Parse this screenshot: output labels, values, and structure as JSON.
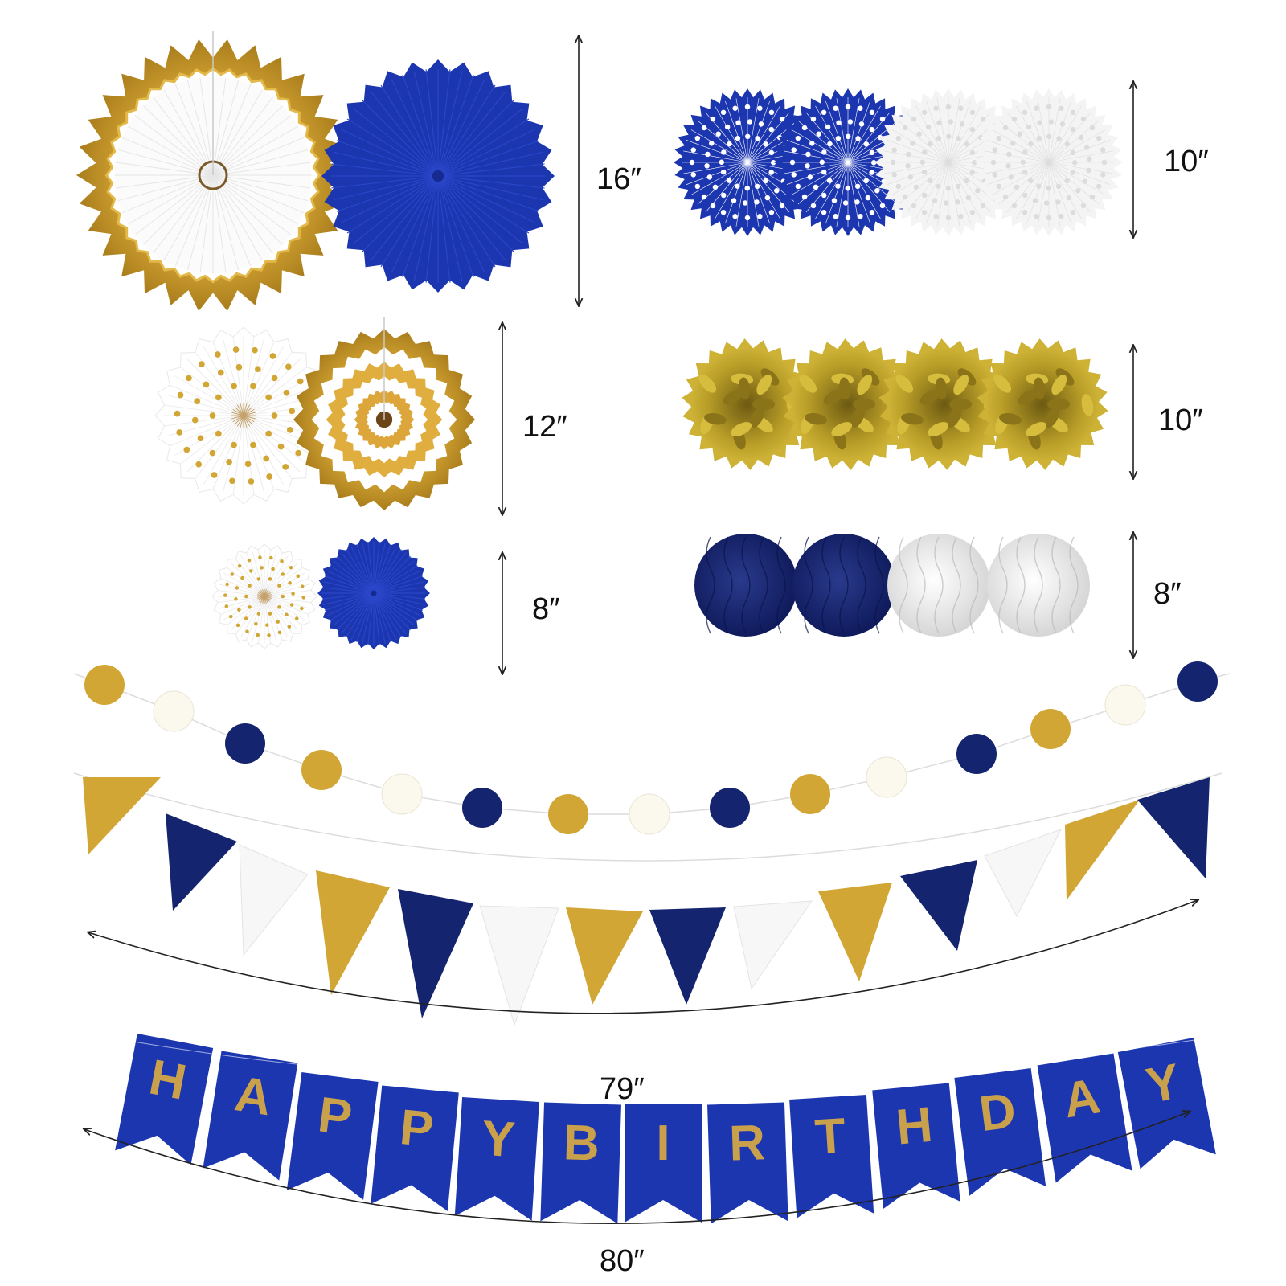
{
  "colors": {
    "navy": "#14246e",
    "royal_blue": "#1c36b0",
    "gold": "#d2a634",
    "gold_light": "#f3d27a",
    "olive_gold": "#b59a2a",
    "white": "#fafafa",
    "silver": "#d8d8d8"
  },
  "dimensions": {
    "large_fans": "16″",
    "medium_fans": "12″",
    "small_fans": "8″",
    "small_paper_fans": "10″",
    "pom_poms": "10″",
    "honeycomb_balls": "8″",
    "triangle_banner": "79″",
    "birthday_banner": "80″"
  },
  "birthday_banner": {
    "letters": [
      "H",
      "A",
      "P",
      "P",
      "Y",
      "B",
      "I",
      "R",
      "T",
      "H",
      "D",
      "A",
      "Y"
    ]
  },
  "items": {
    "large_fans": [
      "gold-white-fan-icon",
      "royal-blue-fan-icon"
    ],
    "medium_fans": [
      "polka-dot-fan-icon",
      "gold-striped-fan-icon"
    ],
    "small_fans": [
      "polka-dot-fan-icon",
      "royal-blue-fan-icon"
    ],
    "small_paper_fans": [
      "blue-lace-fan-icon",
      "blue-lace-fan-icon",
      "white-lace-fan-icon",
      "white-lace-fan-icon"
    ],
    "pom_poms": [
      "gold-pom-pom-icon",
      "gold-pom-pom-icon",
      "gold-pom-pom-icon",
      "gold-pom-pom-icon"
    ],
    "honeycomb_balls": [
      "navy-honeycomb-ball-icon",
      "navy-honeycomb-ball-icon",
      "white-honeycomb-ball-icon",
      "white-honeycomb-ball-icon"
    ],
    "circle_garland": [
      "gold",
      "white",
      "navy",
      "gold",
      "white",
      "navy",
      "gold",
      "white",
      "navy",
      "gold",
      "white",
      "navy",
      "gold",
      "white",
      "navy"
    ],
    "triangle_banner": [
      "gold",
      "navy",
      "white",
      "gold",
      "navy",
      "white",
      "gold",
      "navy",
      "white",
      "gold",
      "navy",
      "white",
      "gold",
      "navy"
    ]
  }
}
